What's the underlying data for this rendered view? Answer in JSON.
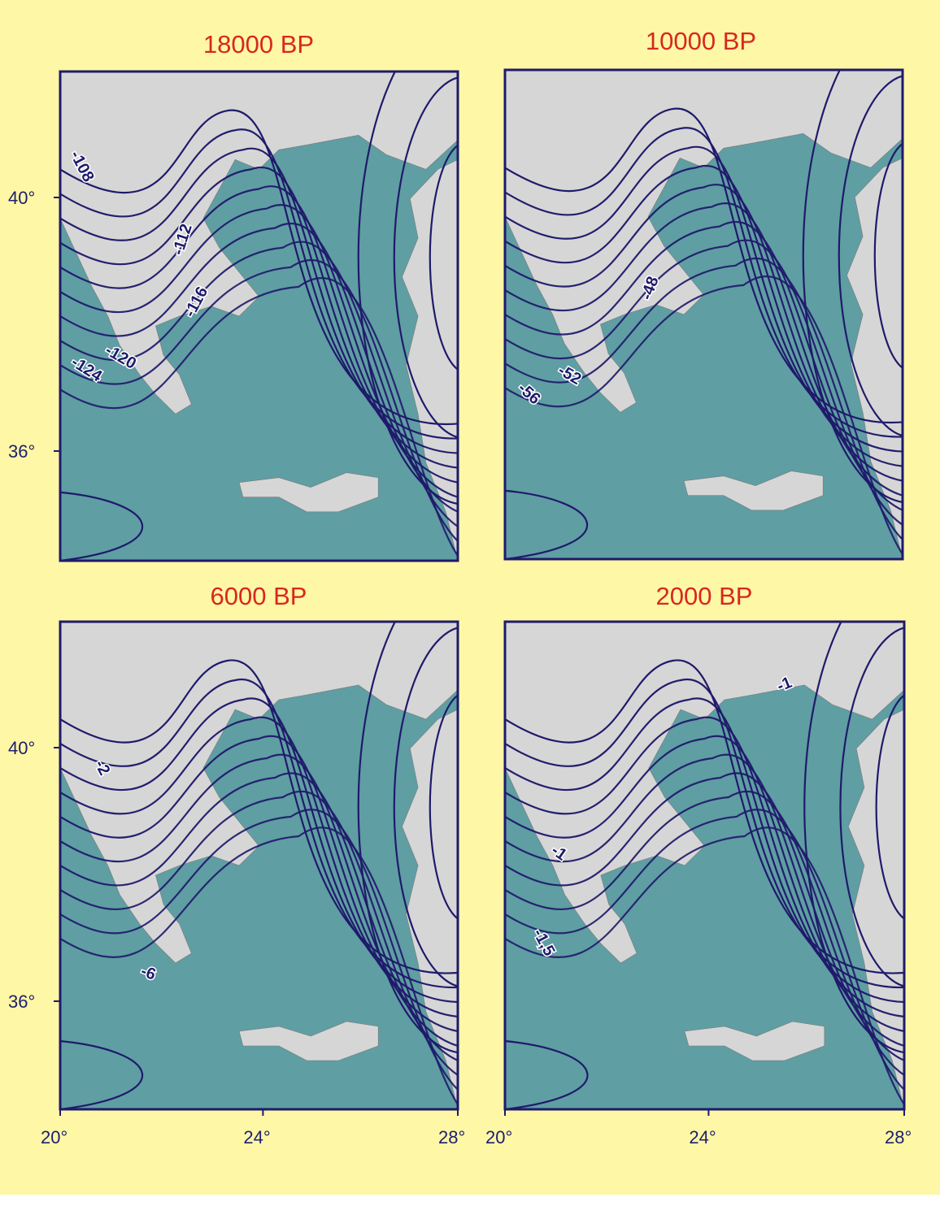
{
  "panels": [
    {
      "title": "18000 BP",
      "contour_labels": [
        "-108",
        "-112",
        "-116",
        "-120",
        "-124"
      ]
    },
    {
      "title": "10000 BP",
      "contour_labels": [
        "-48",
        "-52",
        "-56"
      ]
    },
    {
      "title": "6000 BP",
      "contour_labels": [
        "-2",
        "-6"
      ]
    },
    {
      "title": "2000 BP",
      "contour_labels": [
        "-1",
        "-1",
        "-1,5"
      ]
    }
  ],
  "axes": {
    "lat_labels": [
      "40°",
      "36°"
    ],
    "lon_labels": [
      "20°",
      "24°",
      "28°"
    ]
  }
}
